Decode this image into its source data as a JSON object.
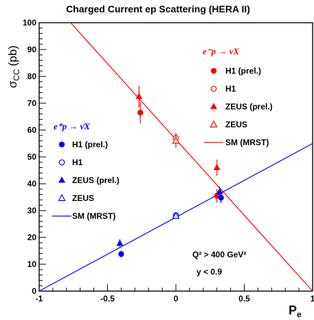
{
  "chart_data": {
    "type": "scatter",
    "title": "Charged Current ep Scattering (HERA II)",
    "xlabel": "P",
    "xlabel_sub": "e",
    "ylabel": "σ",
    "ylabel_sub": "CC",
    "ylabel_suffix": "(pb)",
    "xlim": [
      -1,
      1
    ],
    "ylim": [
      0,
      100
    ],
    "x_ticks": [
      {
        "v": -1,
        "label": "-1"
      },
      {
        "v": -0.5,
        "label": "-0.5"
      },
      {
        "v": 0,
        "label": "0"
      },
      {
        "v": 0.5,
        "label": "0.5"
      },
      {
        "v": 1,
        "label": "1"
      }
    ],
    "y_ticks": [
      {
        "v": 0,
        "label": "0"
      },
      {
        "v": 10,
        "label": "10"
      },
      {
        "v": 20,
        "label": "20"
      },
      {
        "v": 30,
        "label": "30"
      },
      {
        "v": 40,
        "label": "40"
      },
      {
        "v": 50,
        "label": "50"
      },
      {
        "v": 60,
        "label": "60"
      },
      {
        "v": 70,
        "label": "70"
      },
      {
        "v": 80,
        "label": "80"
      },
      {
        "v": 90,
        "label": "90"
      },
      {
        "v": 100,
        "label": "100"
      }
    ],
    "groups": [
      {
        "name": "e⁻p → νX",
        "color": "#ff0000",
        "series": [
          {
            "name": "H1 (prel.)",
            "marker": "circle-filled",
            "points": [
              {
                "x": -0.26,
                "y": 66.5,
                "err": 4.0
              },
              {
                "x": 0.3,
                "y": 35.5,
                "err": 2.5
              }
            ]
          },
          {
            "name": "H1",
            "marker": "circle-open",
            "points": [
              {
                "x": 0.0,
                "y": 57.0,
                "err": 2.0
              }
            ]
          },
          {
            "name": "ZEUS (prel.)",
            "marker": "triangle-filled",
            "points": [
              {
                "x": -0.27,
                "y": 72.5,
                "err": 4.0
              },
              {
                "x": 0.3,
                "y": 46.0,
                "err": 3.0
              }
            ]
          },
          {
            "name": "ZEUS",
            "marker": "triangle-open",
            "points": [
              {
                "x": 0.0,
                "y": 56.0,
                "err": 2.5
              }
            ]
          },
          {
            "name": "SM (MRST)",
            "marker": "line",
            "line": [
              {
                "x": -0.77,
                "y": 100
              },
              {
                "x": 1.0,
                "y": 0
              }
            ]
          }
        ]
      },
      {
        "name": "e⁺p → ν̄X",
        "color": "#0000ff",
        "series": [
          {
            "name": "H1 (prel.)",
            "marker": "circle-filled",
            "points": [
              {
                "x": -0.4,
                "y": 13.8,
                "err": 1.2
              },
              {
                "x": 0.33,
                "y": 34.8,
                "err": 2.0
              }
            ]
          },
          {
            "name": "H1",
            "marker": "circle-open",
            "points": [
              {
                "x": 0.0,
                "y": 28.2,
                "err": 1.0
              }
            ]
          },
          {
            "name": "ZEUS (prel.)",
            "marker": "triangle-filled",
            "points": [
              {
                "x": -0.41,
                "y": 17.8,
                "err": 1.5
              },
              {
                "x": 0.32,
                "y": 37.0,
                "err": 2.0
              }
            ]
          },
          {
            "name": "ZEUS",
            "marker": "triangle-open",
            "points": [
              {
                "x": 0.0,
                "y": 28.0,
                "err": 1.0
              }
            ]
          },
          {
            "name": "SM (MRST)",
            "marker": "line",
            "line": [
              {
                "x": -1.0,
                "y": 0
              },
              {
                "x": 1.0,
                "y": 55
              }
            ]
          }
        ]
      }
    ],
    "annotations": {
      "q2_line": "Q² > 400 GeV²",
      "y_line": "y < 0.9"
    },
    "grid": false,
    "legend_placement": "top-right (e⁻p), middle-left (e⁺p)"
  }
}
